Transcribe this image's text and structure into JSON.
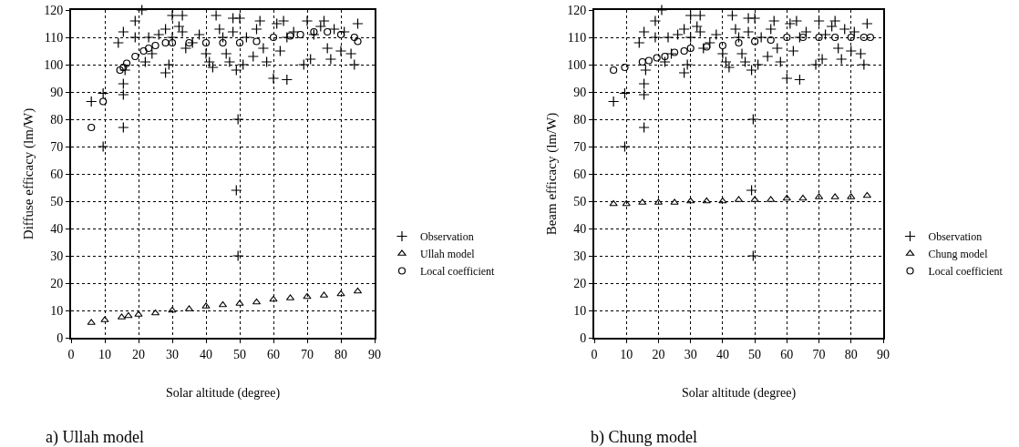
{
  "chart_data": [
    {
      "type": "scatter",
      "xlabel": "Solar altitude (degree)",
      "ylabel": "Diffuse efficacy (lm/W)",
      "xlim": [
        0,
        90
      ],
      "ylim": [
        0,
        120
      ],
      "xticks": [
        0,
        10,
        20,
        30,
        40,
        50,
        60,
        70,
        80,
        90
      ],
      "yticks": [
        0,
        10,
        20,
        30,
        40,
        50,
        60,
        70,
        80,
        90,
        100,
        110,
        120
      ],
      "grid": true,
      "legend": "right",
      "annotations": [
        "a) Ullah model"
      ],
      "series": [
        {
          "name": "Observation",
          "color": "#000000",
          "marker": "cross",
          "x": [
            6,
            9.5,
            9.5,
            14,
            15.5,
            15.5,
            15.5,
            15.5,
            16,
            19,
            19,
            21,
            22,
            23,
            24,
            26,
            28,
            28,
            29,
            30,
            30,
            32,
            33,
            33,
            34,
            36,
            38,
            40,
            41,
            42,
            43,
            44,
            45,
            46,
            47,
            48,
            48,
            49,
            49,
            49.5,
            49.5,
            50,
            51,
            52,
            54,
            55,
            56,
            57,
            58,
            60,
            61,
            62,
            63,
            64,
            64,
            66,
            69,
            70,
            71,
            72,
            74,
            75,
            76,
            77,
            78,
            80,
            81,
            83,
            84,
            85
          ],
          "values": [
            86.5,
            89.5,
            70,
            108,
            112,
            93,
            89,
            77,
            98,
            116,
            110,
            120,
            101,
            110,
            104,
            111,
            113,
            97,
            100,
            118,
            110,
            114,
            118,
            112,
            106,
            108,
            111,
            104,
            101,
            99,
            118,
            113,
            110,
            104,
            101,
            117,
            112,
            98,
            54,
            30,
            80,
            117,
            100,
            110,
            103,
            113,
            116,
            106,
            101,
            95,
            115,
            105,
            116,
            94.5,
            110,
            112,
            100,
            116,
            102,
            111,
            114,
            116,
            106,
            102,
            113,
            105,
            112,
            104,
            100,
            115
          ]
        },
        {
          "name": "Ullah model",
          "color": "#000000",
          "marker": "triangle",
          "x": [
            6,
            10,
            15,
            17,
            20,
            25,
            30,
            35,
            40,
            45,
            50,
            55,
            60,
            65,
            70,
            75,
            80,
            85
          ],
          "values": [
            5.5,
            6.5,
            7.5,
            8,
            8.5,
            9,
            10,
            10.5,
            11.5,
            12,
            12.5,
            13,
            14,
            14.5,
            15,
            15.5,
            16,
            17
          ]
        },
        {
          "name": "Local coefficient",
          "color": "#000000",
          "marker": "circle",
          "x": [
            6,
            9.5,
            14.5,
            15.5,
            16.5,
            19,
            21.5,
            23,
            25,
            28,
            30,
            35,
            40,
            45,
            50,
            55,
            60,
            65,
            68,
            72,
            76,
            80,
            84,
            85
          ],
          "values": [
            77,
            86.5,
            98,
            99,
            100.5,
            103,
            105,
            106,
            107,
            108,
            108,
            108,
            108,
            108,
            108,
            108.5,
            110,
            110.5,
            111,
            112,
            112,
            111,
            110,
            108.5
          ]
        }
      ]
    },
    {
      "type": "scatter",
      "xlabel": "Solar altitude (degree)",
      "ylabel": "Beam efficacy (lm/W)",
      "xlim": [
        0,
        90
      ],
      "ylim": [
        0,
        120
      ],
      "xticks": [
        0,
        10,
        20,
        30,
        40,
        50,
        60,
        70,
        80,
        90
      ],
      "yticks": [
        0,
        10,
        20,
        30,
        40,
        50,
        60,
        70,
        80,
        90,
        100,
        110,
        120
      ],
      "grid": true,
      "legend": "right",
      "annotations": [
        "b) Chung model"
      ],
      "series": [
        {
          "name": "Observation",
          "color": "#000000",
          "marker": "cross",
          "x": [
            6,
            9.5,
            9.5,
            14,
            15.5,
            15.5,
            15.5,
            15.5,
            16,
            19,
            19,
            21,
            22,
            23,
            24,
            26,
            28,
            28,
            29,
            30,
            30,
            32,
            33,
            33,
            34,
            36,
            38,
            40,
            41,
            42,
            43,
            44,
            45,
            46,
            47,
            48,
            48,
            49,
            49,
            49.5,
            49.5,
            50,
            51,
            52,
            54,
            55,
            56,
            57,
            58,
            60,
            61,
            62,
            63,
            64,
            64,
            66,
            69,
            70,
            71,
            72,
            74,
            75,
            76,
            77,
            78,
            80,
            81,
            83,
            84,
            85
          ],
          "values": [
            86.5,
            89.5,
            70,
            108,
            112,
            93,
            89,
            77,
            98,
            116,
            110,
            120,
            101,
            110,
            104,
            111,
            113,
            97,
            100,
            118,
            110,
            114,
            118,
            112,
            106,
            108,
            111,
            104,
            101,
            99,
            118,
            113,
            110,
            104,
            101,
            117,
            112,
            98,
            54,
            30,
            80,
            117,
            100,
            110,
            103,
            113,
            116,
            106,
            101,
            95,
            115,
            105,
            116,
            94.5,
            110,
            112,
            100,
            116,
            102,
            111,
            114,
            116,
            106,
            102,
            113,
            105,
            112,
            104,
            100,
            115
          ]
        },
        {
          "name": "Chung model",
          "color": "#000000",
          "marker": "triangle",
          "x": [
            6,
            10,
            15,
            20,
            25,
            30,
            35,
            40,
            45,
            50,
            55,
            60,
            65,
            70,
            75,
            80,
            85
          ],
          "values": [
            49,
            49,
            49.5,
            49.5,
            49.5,
            50,
            50,
            50,
            50.5,
            50.5,
            50.5,
            51,
            51,
            51.5,
            51.5,
            51.5,
            52
          ]
        },
        {
          "name": "Local coefficient",
          "color": "#000000",
          "marker": "circle",
          "x": [
            6,
            9.5,
            15,
            17,
            19.5,
            22,
            25,
            28,
            30,
            35,
            40,
            45,
            50,
            55,
            60,
            65,
            70,
            75,
            80,
            84,
            86
          ],
          "values": [
            98,
            99,
            101,
            101.5,
            102.5,
            103,
            104.5,
            105,
            106,
            106.5,
            107,
            108,
            108.5,
            109,
            110,
            110,
            110,
            110,
            110,
            110,
            110
          ]
        }
      ]
    }
  ]
}
